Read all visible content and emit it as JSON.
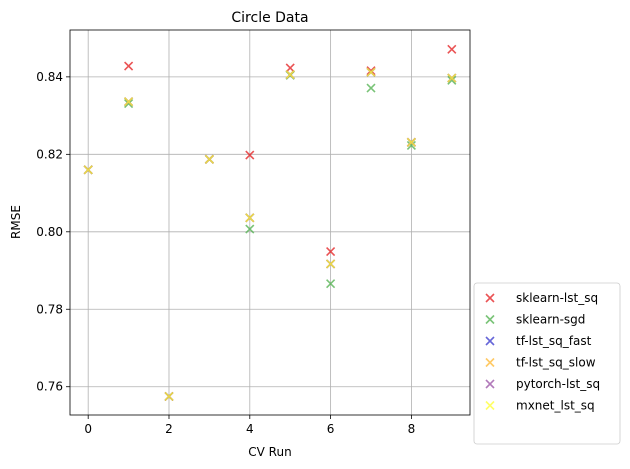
{
  "chart_data": {
    "type": "scatter",
    "title": "Circle Data",
    "xlabel": "CV Run",
    "ylabel": "RMSE",
    "xlim": [
      -0.45,
      9.45
    ],
    "ylim": [
      0.7527,
      0.8521
    ],
    "xticks": [
      0,
      2,
      4,
      6,
      8
    ],
    "yticks": [
      0.76,
      0.78,
      0.8,
      0.82,
      0.84
    ],
    "ytick_labels": [
      "0.76",
      "0.78",
      "0.80",
      "0.82",
      "0.84"
    ],
    "grid": true,
    "legend_position": "outside lower-right",
    "marker": "x",
    "x": [
      0,
      1,
      2,
      3,
      4,
      5,
      6,
      7,
      8,
      9
    ],
    "series": [
      {
        "name": "sklearn-lst_sq",
        "color": "#e41a1c",
        "values": [
          0.816,
          0.8428,
          0.7575,
          0.8187,
          0.8198,
          0.8423,
          0.7949,
          0.8416,
          0.8231,
          0.8471
        ]
      },
      {
        "name": "sklearn-sgd",
        "color": "#4daf4a",
        "values": [
          0.816,
          0.8331,
          0.7575,
          0.8187,
          0.8007,
          0.8404,
          0.7866,
          0.8371,
          0.8223,
          0.8391
        ]
      },
      {
        "name": "tf-lst_sq_fast",
        "color": "#3333cc",
        "values": [
          0.816,
          0.8336,
          0.7575,
          0.8187,
          0.8036,
          0.8406,
          0.7917,
          0.8412,
          0.8231,
          0.8397
        ]
      },
      {
        "name": "tf-lst_sq_slow",
        "color": "#ffb732",
        "values": [
          0.816,
          0.8336,
          0.7575,
          0.8187,
          0.8036,
          0.8406,
          0.7917,
          0.8412,
          0.8231,
          0.8397
        ]
      },
      {
        "name": "pytorch-lst_sq",
        "color": "#984ea3",
        "values": [
          0.816,
          0.8336,
          0.7575,
          0.8187,
          0.8036,
          0.8406,
          0.7917,
          0.8412,
          0.8231,
          0.8397
        ]
      },
      {
        "name": "mxnet_lst_sq",
        "color": "#ffff33",
        "values": [
          0.816,
          0.8336,
          0.7575,
          0.8187,
          0.8036,
          0.8406,
          0.7917,
          0.8412,
          0.8231,
          0.8397
        ]
      }
    ]
  }
}
